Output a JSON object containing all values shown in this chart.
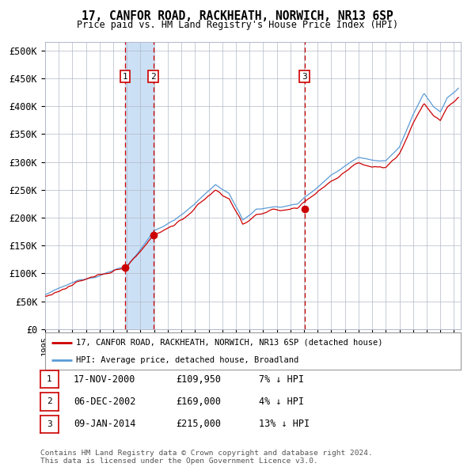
{
  "title": "17, CANFOR ROAD, RACKHEATH, NORWICH, NR13 6SP",
  "subtitle": "Price paid vs. HM Land Registry's House Price Index (HPI)",
  "ylabel_ticks": [
    "£0",
    "£50K",
    "£100K",
    "£150K",
    "£200K",
    "£250K",
    "£300K",
    "£350K",
    "£400K",
    "£450K",
    "£500K"
  ],
  "ytick_values": [
    0,
    50000,
    100000,
    150000,
    200000,
    250000,
    300000,
    350000,
    400000,
    450000,
    500000
  ],
  "xlim_start": 1995.0,
  "xlim_end": 2025.5,
  "ylim": [
    0,
    515000
  ],
  "sale_dates": [
    2000.88,
    2002.93,
    2014.03
  ],
  "sale_prices": [
    109950,
    169000,
    215000
  ],
  "sale_labels": [
    "1",
    "2",
    "3"
  ],
  "shade_x1": 2000.88,
  "shade_x2": 2002.93,
  "shade_color": "#cce0f5",
  "legend_red_label": "17, CANFOR ROAD, RACKHEATH, NORWICH, NR13 6SP (detached house)",
  "legend_blue_label": "HPI: Average price, detached house, Broadland",
  "table_data": [
    [
      "1",
      "17-NOV-2000",
      "£109,950",
      "7% ↓ HPI"
    ],
    [
      "2",
      "06-DEC-2002",
      "£169,000",
      "4% ↓ HPI"
    ],
    [
      "3",
      "09-JAN-2014",
      "£215,000",
      "13% ↓ HPI"
    ]
  ],
  "footnote": "Contains HM Land Registry data © Crown copyright and database right 2024.\nThis data is licensed under the Open Government Licence v3.0.",
  "hpi_color": "#5b9bd5",
  "price_color": "#cc0000",
  "grid_color": "#b0b8c8",
  "plot_bg": "#ffffff"
}
